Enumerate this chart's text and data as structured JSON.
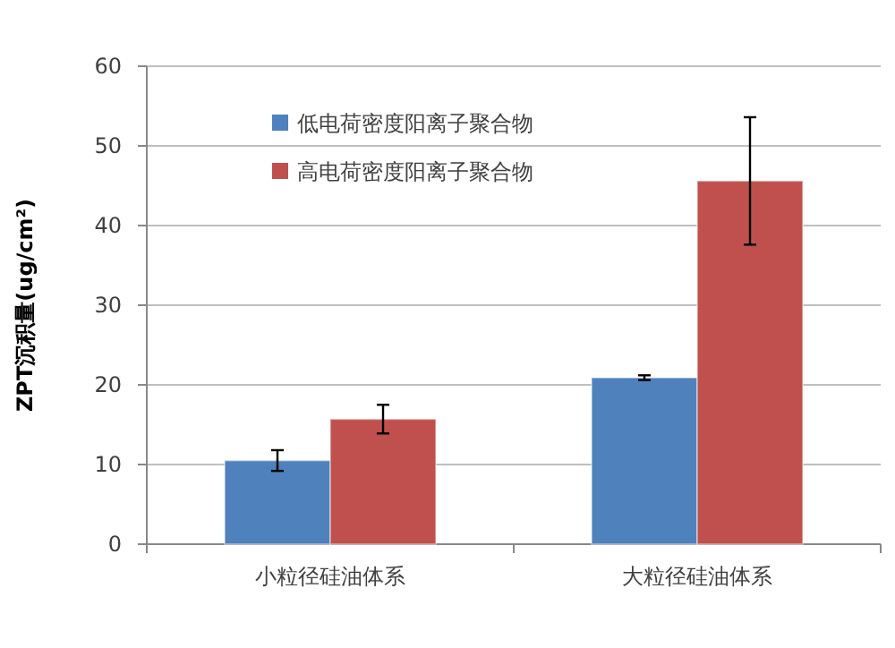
{
  "chart_data": {
    "type": "bar",
    "ylabel": "ZPT沉积量(ug/cm²)",
    "categories": [
      "小粒径硅油体系",
      "大粒径硅油体系"
    ],
    "series": [
      {
        "name": "低电荷密度阳离子聚合物",
        "color": "#4f81bd",
        "values": [
          10.5,
          20.9
        ],
        "errors": [
          1.3,
          0.3
        ]
      },
      {
        "name": "高电荷密度阳离子聚合物",
        "color": "#c0504d",
        "values": [
          15.7,
          45.6
        ],
        "errors": [
          1.8,
          8
        ]
      }
    ],
    "ylim": [
      0,
      60
    ],
    "yticks": [
      0,
      10,
      20,
      30,
      40,
      50,
      60
    ],
    "grid": "y",
    "legend": "top left"
  }
}
